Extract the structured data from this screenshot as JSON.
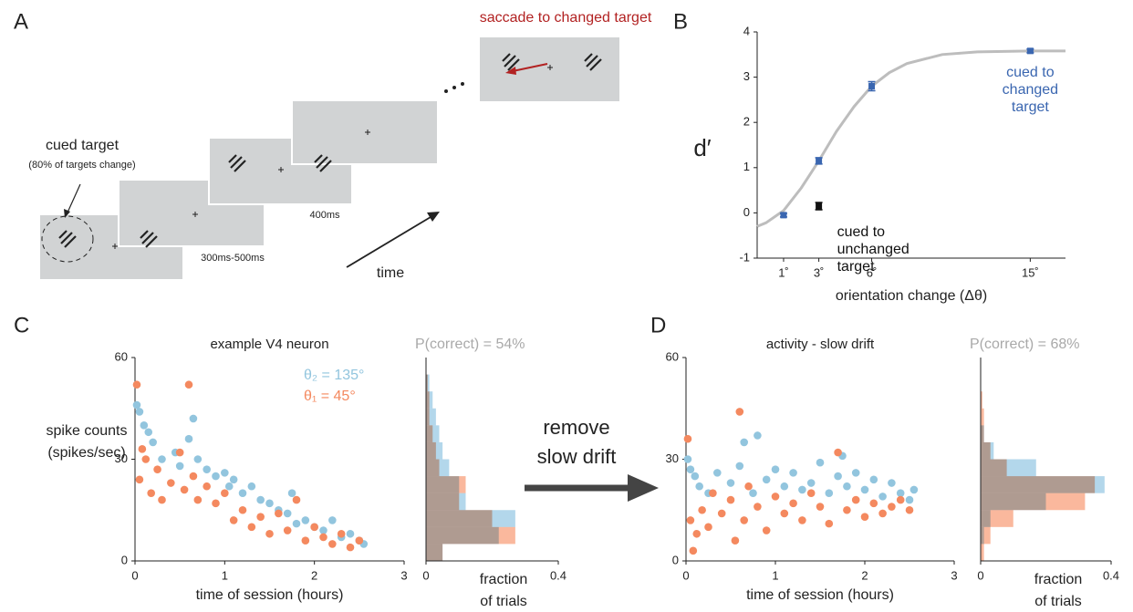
{
  "panel_labels": [
    "A",
    "B",
    "C",
    "D"
  ],
  "panel_a": {
    "saccade_label": "saccade to changed target",
    "cue_label": "cued target",
    "cue_note": "(80% of targets change)",
    "interval_1": "300ms-500ms",
    "interval_2": "400ms",
    "time_label": "time"
  },
  "transform_label": [
    "remove",
    "slow drift"
  ],
  "chart_data": [
    {
      "type": "line",
      "ylabel": "d′",
      "xlabel": "orientation change (Δθ)",
      "xlim": [
        -0.5,
        17
      ],
      "ylim": [
        -1,
        4
      ],
      "xticks": [
        {
          "value": 1,
          "label": "1˚"
        },
        {
          "value": 3,
          "label": "3˚"
        },
        {
          "value": 6,
          "label": "6˚"
        },
        {
          "value": 15,
          "label": "15˚"
        }
      ],
      "yticks": [
        -1,
        0,
        1,
        2,
        3,
        4
      ],
      "fit": {
        "color": "#bdbdbd",
        "x": [
          -0.5,
          0,
          1,
          2,
          3,
          4,
          5,
          6,
          7,
          8,
          10,
          12,
          15,
          17
        ],
        "values": [
          -0.3,
          -0.22,
          0.05,
          0.55,
          1.15,
          1.8,
          2.35,
          2.8,
          3.1,
          3.3,
          3.5,
          3.56,
          3.58,
          3.58
        ]
      },
      "series": [
        {
          "color": "#3a66b0",
          "label_lines": [
            "cued to",
            "changed",
            "target"
          ],
          "x": [
            1,
            3,
            6,
            15
          ],
          "values": [
            -0.05,
            1.15,
            2.8,
            3.58
          ],
          "errors": [
            0.04,
            0.07,
            0.1,
            0.04
          ]
        },
        {
          "color": "#111111",
          "label_lines": [
            "cued to",
            "unchanged",
            "target"
          ],
          "x": [
            3
          ],
          "values": [
            0.15
          ],
          "errors": [
            0.08
          ]
        }
      ]
    },
    {
      "type": "scatter",
      "title": "example V4 neuron",
      "xlabel": "time of session (hours)",
      "ylabel": [
        "spike counts",
        "(spikes/sec)"
      ],
      "xlim": [
        0,
        3
      ],
      "ylim": [
        0,
        60
      ],
      "xticks": [
        0,
        1,
        2,
        3
      ],
      "yticks": [
        0,
        30,
        60
      ],
      "series": [
        {
          "name": "θ₂ = 135°",
          "color": "#92c5de",
          "x": [
            0.02,
            0.05,
            0.1,
            0.15,
            0.2,
            0.3,
            0.45,
            0.5,
            0.6,
            0.65,
            0.7,
            0.8,
            0.9,
            1.0,
            1.05,
            1.1,
            1.2,
            1.3,
            1.4,
            1.5,
            1.6,
            1.7,
            1.75,
            1.8,
            1.9,
            2.0,
            2.1,
            2.2,
            2.3,
            2.4,
            2.5,
            2.55
          ],
          "values": [
            46,
            44,
            40,
            38,
            35,
            30,
            32,
            28,
            36,
            42,
            30,
            27,
            25,
            26,
            22,
            24,
            20,
            22,
            18,
            17,
            15,
            14,
            20,
            11,
            12,
            10,
            9,
            12,
            7,
            8,
            6,
            5
          ]
        },
        {
          "name": "θ₁ = 45°",
          "color": "#f4895f",
          "x": [
            0.02,
            0.05,
            0.08,
            0.12,
            0.18,
            0.25,
            0.3,
            0.4,
            0.5,
            0.55,
            0.6,
            0.65,
            0.7,
            0.8,
            0.9,
            1.0,
            1.1,
            1.2,
            1.3,
            1.4,
            1.5,
            1.6,
            1.7,
            1.8,
            1.9,
            2.0,
            2.1,
            2.2,
            2.3,
            2.4,
            2.5
          ],
          "values": [
            52,
            24,
            33,
            30,
            20,
            27,
            18,
            23,
            32,
            21,
            52,
            25,
            18,
            22,
            17,
            20,
            12,
            15,
            10,
            13,
            8,
            14,
            9,
            18,
            6,
            10,
            7,
            5,
            8,
            4,
            6
          ]
        }
      ]
    },
    {
      "type": "histogram",
      "annotation": "P(correct) = 54%",
      "xlabel": [
        "fraction",
        "of trials"
      ],
      "xlim": [
        0,
        0.4
      ],
      "ylim": [
        0,
        60
      ],
      "xticks": [
        0,
        0.4
      ],
      "bins": [
        0,
        5,
        10,
        15,
        20,
        25,
        30,
        35,
        40,
        45,
        50,
        55
      ],
      "series": [
        {
          "color": "#a6d0e8",
          "values": [
            0.05,
            0.22,
            0.27,
            0.12,
            0.1,
            0.07,
            0.05,
            0.04,
            0.03,
            0.02,
            0.01
          ]
        },
        {
          "color": "#f9ab8c",
          "values": [
            0.05,
            0.27,
            0.2,
            0.1,
            0.12,
            0.04,
            0.03,
            0.02,
            0.01,
            0.01,
            0.005
          ]
        }
      ]
    },
    {
      "type": "scatter",
      "title": "activity - slow drift",
      "xlabel": "time of session (hours)",
      "xlim": [
        0,
        3
      ],
      "ylim": [
        0,
        60
      ],
      "xticks": [
        0,
        1,
        2,
        3
      ],
      "yticks": [
        0,
        30,
        60
      ],
      "series": [
        {
          "color": "#92c5de",
          "x": [
            0.02,
            0.05,
            0.1,
            0.15,
            0.25,
            0.35,
            0.5,
            0.6,
            0.65,
            0.75,
            0.8,
            0.9,
            1.0,
            1.1,
            1.2,
            1.3,
            1.4,
            1.5,
            1.6,
            1.7,
            1.75,
            1.8,
            1.9,
            2.0,
            2.1,
            2.2,
            2.3,
            2.4,
            2.5,
            2.55
          ],
          "values": [
            30,
            27,
            25,
            22,
            20,
            26,
            23,
            28,
            35,
            20,
            37,
            24,
            27,
            22,
            26,
            21,
            23,
            29,
            20,
            25,
            31,
            22,
            26,
            21,
            24,
            19,
            23,
            20,
            18,
            21
          ]
        },
        {
          "color": "#f4895f",
          "x": [
            0.02,
            0.05,
            0.08,
            0.12,
            0.18,
            0.25,
            0.3,
            0.4,
            0.5,
            0.55,
            0.6,
            0.65,
            0.7,
            0.8,
            0.9,
            1.0,
            1.1,
            1.2,
            1.3,
            1.4,
            1.5,
            1.6,
            1.7,
            1.8,
            1.9,
            2.0,
            2.1,
            2.2,
            2.3,
            2.4,
            2.5
          ],
          "values": [
            36,
            12,
            3,
            8,
            15,
            10,
            20,
            14,
            18,
            6,
            44,
            12,
            22,
            16,
            9,
            19,
            14,
            17,
            12,
            20,
            16,
            11,
            32,
            15,
            18,
            13,
            17,
            14,
            16,
            18,
            15
          ]
        }
      ]
    },
    {
      "type": "histogram",
      "annotation": "P(correct) = 68%",
      "xlabel": [
        "fraction",
        "of trials"
      ],
      "xlim": [
        0,
        0.4
      ],
      "ylim": [
        0,
        60
      ],
      "xticks": [
        0,
        0.4
      ],
      "bins": [
        0,
        5,
        10,
        15,
        20,
        25,
        30,
        35,
        40,
        45,
        50,
        55
      ],
      "series": [
        {
          "color": "#a6d0e8",
          "values": [
            0,
            0.01,
            0.03,
            0.2,
            0.38,
            0.17,
            0.04,
            0.01,
            0,
            0,
            0
          ]
        },
        {
          "color": "#f9ab8c",
          "values": [
            0.01,
            0.03,
            0.1,
            0.32,
            0.35,
            0.08,
            0.03,
            0.01,
            0.01,
            0.005,
            0
          ]
        }
      ]
    }
  ]
}
